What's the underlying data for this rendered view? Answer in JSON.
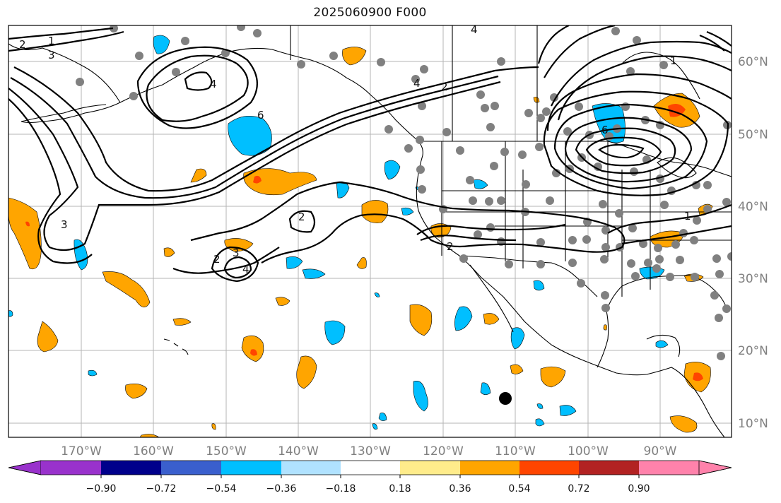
{
  "title": "2025060900 F000",
  "lon_labels": [
    "170°W",
    "160°W",
    "150°W",
    "140°W",
    "130°W",
    "120°W",
    "110°W",
    "100°W",
    "90°W"
  ],
  "lat_labels": [
    "60°N",
    "50°N",
    "40°N",
    "30°N",
    "20°N",
    "10°N"
  ],
  "colorbar": {
    "tick_labels": [
      "−0.90",
      "−0.72",
      "−0.54",
      "−0.36",
      "−0.18",
      "0.18",
      "0.36",
      "0.54",
      "0.72",
      "0.90"
    ],
    "colors": [
      "#9932cc",
      "#00008b",
      "#3a5fcd",
      "#00bfff",
      "#b0e2ff",
      "#ffffff",
      "#ffec8b",
      "#ffa500",
      "#ff4500",
      "#b22222",
      "#ff82ab"
    ]
  },
  "contour_labels": [
    "1",
    "2",
    "3",
    "4",
    "6",
    "2",
    "2",
    "3",
    "4",
    "1",
    "2",
    "4",
    "6",
    "4",
    "1",
    "2",
    "3"
  ],
  "colors": {
    "orange": "#ffa500",
    "blue": "#00bfff",
    "red": "#ff4500",
    "station": "#808080",
    "grid": "#b4b4b4"
  }
}
